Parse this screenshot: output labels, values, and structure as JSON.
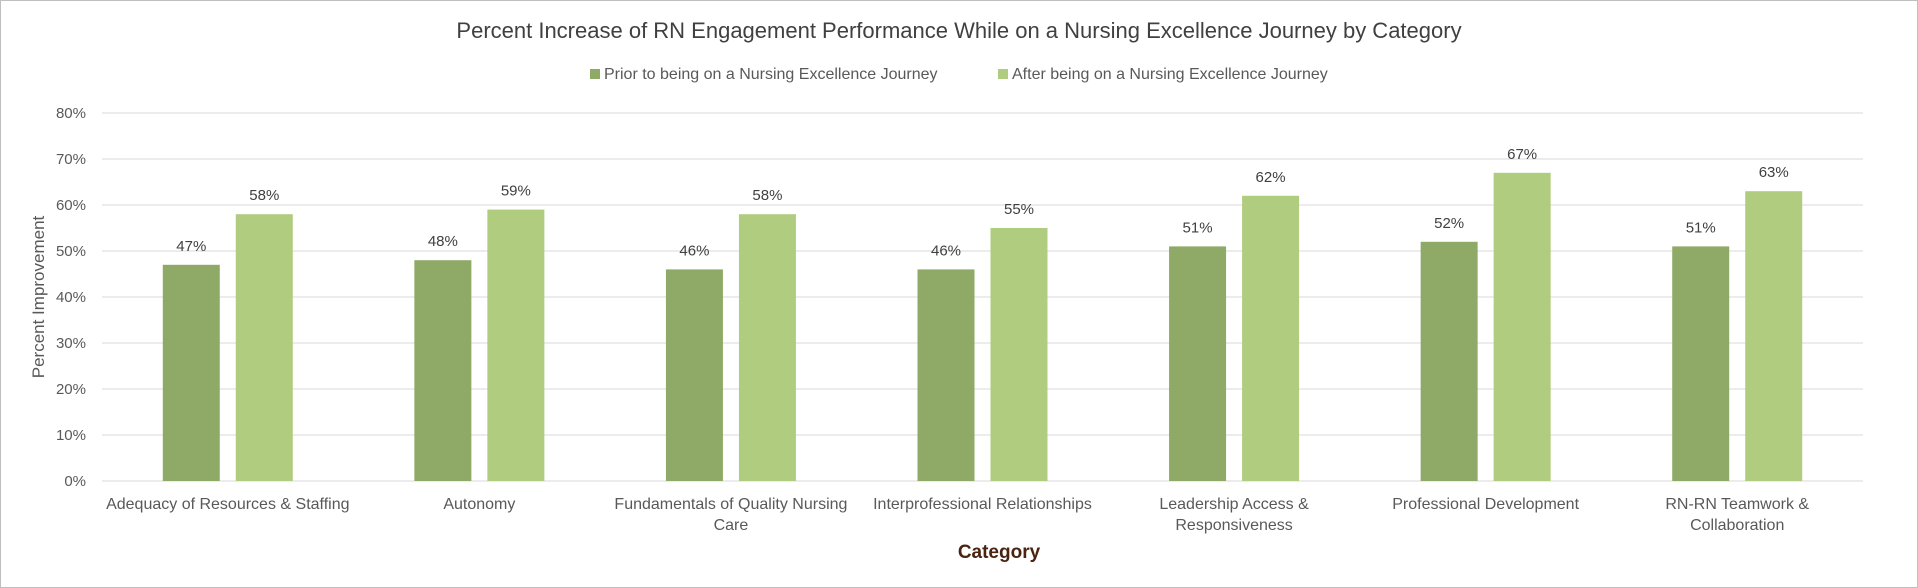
{
  "chart_data": {
    "type": "bar",
    "title": "Percent Increase of RN Engagement Performance While on a Nursing Excellence Journey by Category",
    "xlabel": "Category",
    "ylabel": "Percent Improvement",
    "ylim": [
      0,
      80
    ],
    "y_ticks": [
      "0%",
      "10%",
      "20%",
      "30%",
      "40%",
      "50%",
      "60%",
      "70%",
      "80%"
    ],
    "grid": true,
    "legend_position": "top-center",
    "categories": [
      [
        "Adequacy of Resources & Staffing"
      ],
      [
        "Autonomy"
      ],
      [
        "Fundamentals of Quality Nursing",
        "Care"
      ],
      [
        "Interprofessional Relationships"
      ],
      [
        "Leadership Access &",
        "Responsiveness"
      ],
      [
        "Professional Development"
      ],
      [
        "RN-RN Teamwork &",
        "Collaboration"
      ]
    ],
    "series": [
      {
        "name": "Prior to being on a Nursing Excellence Journey",
        "color": "#8faa66",
        "values": [
          47,
          48,
          46,
          46,
          51,
          52,
          51
        ],
        "labels": [
          "47%",
          "48%",
          "46%",
          "46%",
          "51%",
          "52%",
          "51%"
        ]
      },
      {
        "name": "After being on a Nursing Excellence Journey",
        "color": "#b0cc7e",
        "values": [
          58,
          59,
          58,
          55,
          62,
          67,
          63
        ],
        "labels": [
          "58%",
          "59%",
          "58%",
          "55%",
          "62%",
          "67%",
          "63%"
        ]
      }
    ]
  }
}
